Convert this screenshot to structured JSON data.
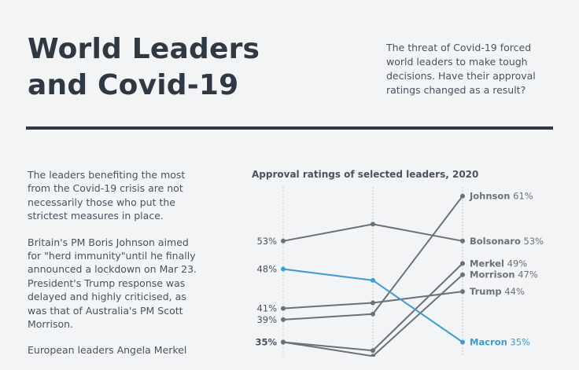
{
  "header": {
    "title_line1": "World Leaders",
    "title_line2": "and Covid-19",
    "intro": "The threat of Covid-19 forced world leaders to make tough decisions. Have their approval ratings changed as a result?"
  },
  "body": {
    "p1": "The leaders benefiting the most from the Covid-19 crisis are not necessarily those who put the strictest measures in place.",
    "p2": "Britain's PM Boris Johnson aimed for \"herd immunity\"until he finally announced a lockdown on Mar 23. President's Trump response was delayed and highly criticised, as was that of Australia's PM Scott Morrison.",
    "p3": "European leaders Angela Merkel"
  },
  "colors": {
    "line": "#6b7079",
    "highlight": "#3f9bd6",
    "text": "#4a5260"
  },
  "chart_data": {
    "type": "line",
    "title": "Approval ratings of selected leaders, 2020",
    "x": [
      1,
      2,
      3
    ],
    "series": [
      {
        "name": "Johnson",
        "values": [
          39,
          40,
          61
        ],
        "end_label": "61%"
      },
      {
        "name": "Bolsonaro",
        "values": [
          53,
          56,
          53
        ],
        "start_label": "53%",
        "end_label": "53%"
      },
      {
        "name": "Merkel",
        "values": [
          35,
          33.5,
          49
        ],
        "start_label": "35%",
        "end_label": "49%"
      },
      {
        "name": "Morrison",
        "values": [
          35,
          32.5,
          47
        ],
        "end_label": "47%"
      },
      {
        "name": "Trump",
        "values": [
          41,
          42,
          44
        ],
        "start_label": "41%",
        "end_label": "44%"
      },
      {
        "name": "Macron",
        "values": [
          48,
          46,
          35
        ],
        "start_label": "48%",
        "end_label": "35%",
        "highlight": true
      }
    ],
    "start_tick_labels": [
      "53%",
      "48%",
      "41%",
      "39%",
      "35%"
    ]
  }
}
